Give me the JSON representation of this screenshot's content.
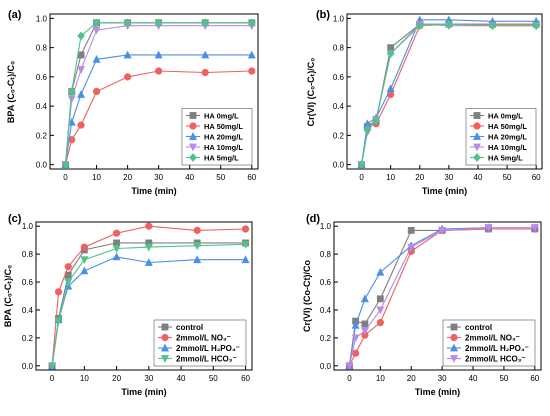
{
  "chart_data": [
    {
      "panel": "(a)",
      "type": "line",
      "xlabel": "Time (min)",
      "ylabel": "BPA (C₀-Cₜ)/C₀",
      "xlim": [
        -5,
        62
      ],
      "ylim": [
        -0.03,
        1.03
      ],
      "xticks": [
        0,
        10,
        20,
        30,
        40,
        50,
        60
      ],
      "yticks": [
        0.0,
        0.2,
        0.4,
        0.6,
        0.8,
        1.0
      ],
      "ytick_labels": [
        "0.0",
        "0.2",
        "0.4",
        "0.6",
        "0.8",
        "1.0"
      ],
      "legend": "bottom-right",
      "x": [
        0,
        2,
        5,
        10,
        20,
        30,
        45,
        60
      ],
      "series": [
        {
          "name": "HA 0mg/L",
          "color": "#7f7f7f",
          "marker": "square",
          "values": [
            0,
            0.5,
            0.75,
            0.97,
            0.97,
            0.97,
            0.97,
            0.97
          ]
        },
        {
          "name": "HA 50mg/L",
          "color": "#f0605e",
          "marker": "circle",
          "values": [
            0,
            0.17,
            0.27,
            0.5,
            0.6,
            0.64,
            0.63,
            0.64
          ]
        },
        {
          "name": "HA 20mg/L",
          "color": "#4a8fe7",
          "marker": "triangle",
          "values": [
            0,
            0.29,
            0.48,
            0.72,
            0.75,
            0.75,
            0.75,
            0.75
          ]
        },
        {
          "name": "HA 10mg/L",
          "color": "#b98ae8",
          "marker": "tri-down",
          "values": [
            0,
            0.45,
            0.65,
            0.92,
            0.95,
            0.95,
            0.95,
            0.95
          ]
        },
        {
          "name": "HA 5mg/L",
          "color": "#4fc48a",
          "marker": "diamond",
          "values": [
            0,
            0.5,
            0.88,
            0.97,
            0.97,
            0.97,
            0.97,
            0.97
          ]
        }
      ]
    },
    {
      "panel": "(b)",
      "type": "line",
      "xlabel": "Time (min)",
      "ylabel": "Cr(VI) (C₀-Cₜ)/C₀",
      "xlim": [
        -5,
        62
      ],
      "ylim": [
        -0.03,
        1.03
      ],
      "xticks": [
        0,
        10,
        20,
        30,
        40,
        50,
        60
      ],
      "yticks": [
        0.0,
        0.2,
        0.4,
        0.6,
        0.8,
        1.0
      ],
      "ytick_labels": [
        "0.0",
        "0.2",
        "0.4",
        "0.6",
        "0.8",
        "1.0"
      ],
      "legend": "bottom-right",
      "x": [
        0,
        2,
        5,
        10,
        20,
        30,
        45,
        60
      ],
      "series": [
        {
          "name": "HA 0mg/L",
          "color": "#7f7f7f",
          "marker": "square",
          "values": [
            0,
            0.26,
            0.3,
            0.8,
            0.96,
            0.96,
            0.96,
            0.96
          ]
        },
        {
          "name": "HA 50mg/L",
          "color": "#f0605e",
          "marker": "circle",
          "values": [
            0,
            0.26,
            0.28,
            0.48,
            0.95,
            0.96,
            0.96,
            0.96
          ]
        },
        {
          "name": "HA 20mg/L",
          "color": "#4a8fe7",
          "marker": "triangle",
          "values": [
            0,
            0.28,
            0.32,
            0.52,
            0.99,
            0.99,
            0.98,
            0.98
          ]
        },
        {
          "name": "HA 10mg/L",
          "color": "#b98ae8",
          "marker": "tri-down",
          "values": [
            0,
            0.22,
            0.31,
            0.76,
            0.96,
            0.95,
            0.95,
            0.95
          ]
        },
        {
          "name": "HA 5mg/L",
          "color": "#4fc48a",
          "marker": "diamond",
          "values": [
            0,
            0.24,
            0.3,
            0.76,
            0.95,
            0.96,
            0.95,
            0.95
          ]
        }
      ]
    },
    {
      "panel": "(c)",
      "type": "line",
      "xlabel": "Time (min)",
      "ylabel": "BPA (C₀-Cₜ)/C₀",
      "xlim": [
        -5,
        62
      ],
      "ylim": [
        -0.03,
        1.03
      ],
      "xticks": [
        0,
        10,
        20,
        30,
        40,
        50,
        60
      ],
      "yticks": [
        0.0,
        0.2,
        0.4,
        0.6,
        0.8,
        1.0
      ],
      "ytick_labels": [
        "0.0",
        "0.2",
        "0.4",
        "0.6",
        "0.8",
        "1.0"
      ],
      "legend": "bottom-right",
      "x": [
        0,
        2,
        5,
        10,
        20,
        30,
        45,
        60
      ],
      "series": [
        {
          "name": "control",
          "color": "#7f7f7f",
          "marker": "square",
          "values": [
            0,
            0.34,
            0.65,
            0.83,
            0.88,
            0.88,
            0.88,
            0.88
          ]
        },
        {
          "name": "2mmol/L NO₃⁻",
          "color": "#f0605e",
          "marker": "circle",
          "values": [
            0,
            0.53,
            0.71,
            0.85,
            0.95,
            1.0,
            0.97,
            0.98
          ]
        },
        {
          "name": "2mmol/L H₂PO₄⁻",
          "color": "#4a8fe7",
          "marker": "triangle",
          "values": [
            0,
            0.33,
            0.57,
            0.68,
            0.78,
            0.74,
            0.76,
            0.76
          ]
        },
        {
          "name": "2mmol/L HCO₃⁻",
          "color": "#4fc48a",
          "marker": "tri-down",
          "values": [
            0,
            0.32,
            0.6,
            0.76,
            0.84,
            0.85,
            0.86,
            0.87
          ]
        }
      ]
    },
    {
      "panel": "(d)",
      "type": "line",
      "xlabel": "Time (min)",
      "ylabel": "Cr(VI) (Co-Ct)/Co",
      "xlim": [
        -5,
        62
      ],
      "ylim": [
        -0.03,
        1.03
      ],
      "xticks": [
        0,
        10,
        20,
        30,
        40,
        50,
        60
      ],
      "yticks": [
        0.0,
        0.2,
        0.4,
        0.6,
        0.8,
        1.0
      ],
      "ytick_labels": [
        "0.0",
        "0.2",
        "0.4",
        "0.6",
        "0.8",
        "1.0"
      ],
      "legend": "bottom-right",
      "x": [
        0,
        2,
        5,
        10,
        20,
        30,
        45,
        60
      ],
      "series": [
        {
          "name": "control",
          "color": "#7f7f7f",
          "marker": "square",
          "values": [
            0,
            0.32,
            0.3,
            0.48,
            0.97,
            0.97,
            0.98,
            0.98
          ]
        },
        {
          "name": "2mmol/L  NO₃⁻",
          "color": "#f0605e",
          "marker": "circle",
          "values": [
            0,
            0.09,
            0.22,
            0.31,
            0.82,
            0.97,
            0.98,
            0.98
          ]
        },
        {
          "name": "2mmol/L  H₂PO₄⁻",
          "color": "#4a8fe7",
          "marker": "triangle",
          "values": [
            0,
            0.29,
            0.48,
            0.67,
            0.86,
            0.98,
            0.99,
            0.99
          ]
        },
        {
          "name": "2mmol/L  HCO₃⁻",
          "color": "#b98ae8",
          "marker": "tri-down",
          "values": [
            0,
            0.2,
            0.25,
            0.4,
            0.85,
            0.97,
            0.99,
            0.99
          ]
        }
      ]
    }
  ]
}
